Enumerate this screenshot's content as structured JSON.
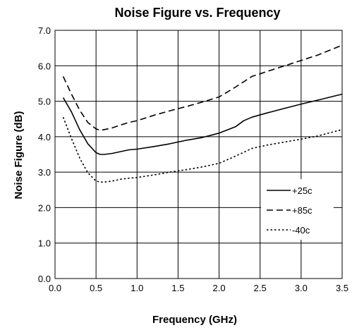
{
  "chart_data": {
    "type": "line",
    "title": "Noise Figure vs. Frequency",
    "xlabel": "Frequency (GHz)",
    "ylabel": "Noise Figure (dB)",
    "xlim": [
      0.0,
      3.5
    ],
    "ylim": [
      0.0,
      7.0
    ],
    "xticks": [
      "0.0",
      "0.5",
      "1.0",
      "1.5",
      "2.0",
      "2.5",
      "3.0",
      "3.5"
    ],
    "yticks": [
      "0.0",
      "1.0",
      "2.0",
      "3.0",
      "4.0",
      "5.0",
      "6.0",
      "7.0"
    ],
    "grid": true,
    "legend_position": "right-lower",
    "series": [
      {
        "name": "+25c",
        "dash": "solid",
        "x": [
          0.1,
          0.2,
          0.3,
          0.4,
          0.5,
          0.55,
          0.6,
          0.7,
          0.8,
          0.9,
          1.0,
          1.2,
          1.4,
          1.6,
          1.8,
          2.0,
          2.2,
          2.3,
          2.4,
          2.6,
          2.8,
          3.0,
          3.2,
          3.5
        ],
        "y": [
          5.1,
          4.7,
          4.2,
          3.8,
          3.55,
          3.5,
          3.5,
          3.53,
          3.58,
          3.63,
          3.65,
          3.72,
          3.8,
          3.9,
          3.98,
          4.1,
          4.28,
          4.45,
          4.55,
          4.68,
          4.8,
          4.92,
          5.03,
          5.2
        ]
      },
      {
        "name": "+85c",
        "dash": "dashed",
        "x": [
          0.1,
          0.2,
          0.3,
          0.4,
          0.5,
          0.55,
          0.6,
          0.7,
          0.8,
          0.9,
          1.0,
          1.2,
          1.4,
          1.6,
          1.8,
          2.0,
          2.2,
          2.4,
          2.6,
          2.8,
          3.0,
          3.2,
          3.5
        ],
        "y": [
          5.7,
          5.2,
          4.75,
          4.4,
          4.22,
          4.18,
          4.2,
          4.25,
          4.33,
          4.4,
          4.45,
          4.6,
          4.73,
          4.85,
          4.98,
          5.12,
          5.4,
          5.7,
          5.85,
          6.0,
          6.15,
          6.3,
          6.58
        ]
      },
      {
        "name": "-40c",
        "dash": "dotted",
        "x": [
          0.1,
          0.2,
          0.3,
          0.4,
          0.5,
          0.55,
          0.6,
          0.7,
          0.8,
          0.9,
          1.0,
          1.2,
          1.4,
          1.6,
          1.8,
          2.0,
          2.2,
          2.4,
          2.6,
          2.8,
          3.0,
          3.2,
          3.5
        ],
        "y": [
          4.55,
          3.95,
          3.4,
          2.98,
          2.75,
          2.72,
          2.72,
          2.75,
          2.8,
          2.83,
          2.85,
          2.92,
          3.0,
          3.07,
          3.15,
          3.25,
          3.45,
          3.67,
          3.77,
          3.85,
          3.93,
          4.02,
          4.2
        ]
      }
    ]
  }
}
